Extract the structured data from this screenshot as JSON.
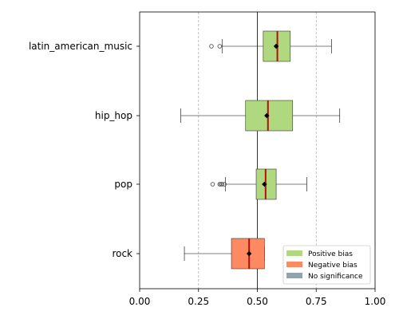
{
  "chart_data": {
    "type": "boxplot",
    "orientation": "horizontal",
    "xlim": [
      0.0,
      1.0
    ],
    "x_ticks": [
      "0.00",
      "0.25",
      "0.50",
      "0.75",
      "1.00"
    ],
    "x_tick_values": [
      0.0,
      0.25,
      0.5,
      0.75,
      1.0
    ],
    "grid": "vertical dashed at 0.25 and 0.75",
    "reference_line": 0.5,
    "legend_position": "lower-right",
    "legend": [
      {
        "label": "Positive bias",
        "color": "#b0d87e"
      },
      {
        "label": "Negative bias",
        "color": "#fd8a63"
      },
      {
        "label": "No significance",
        "color": "#93a3ad"
      }
    ],
    "categories": [
      "latin_american_music",
      "hip_hop",
      "pop",
      "rock"
    ],
    "boxes": [
      {
        "category": "latin_american_music",
        "whisker_low": 0.35,
        "q1": 0.525,
        "median": 0.585,
        "q3": 0.64,
        "whisker_high": 0.815,
        "mean": 0.58,
        "outliers": [
          0.305,
          0.34
        ],
        "bias": "Positive bias"
      },
      {
        "category": "hip_hop",
        "whisker_low": 0.175,
        "q1": 0.45,
        "median": 0.545,
        "q3": 0.65,
        "whisker_high": 0.85,
        "mean": 0.54,
        "outliers": [],
        "bias": "Positive bias"
      },
      {
        "category": "pop",
        "whisker_low": 0.365,
        "q1": 0.495,
        "median": 0.535,
        "q3": 0.58,
        "whisker_high": 0.71,
        "mean": 0.53,
        "outliers": [
          0.31,
          0.34,
          0.345,
          0.35,
          0.36
        ],
        "bias": "Positive bias"
      },
      {
        "category": "rock",
        "whisker_low": 0.19,
        "q1": 0.39,
        "median": 0.465,
        "q3": 0.53,
        "whisker_high": 0.53,
        "mean": 0.465,
        "outliers": [],
        "bias": "Negative bias"
      }
    ]
  }
}
